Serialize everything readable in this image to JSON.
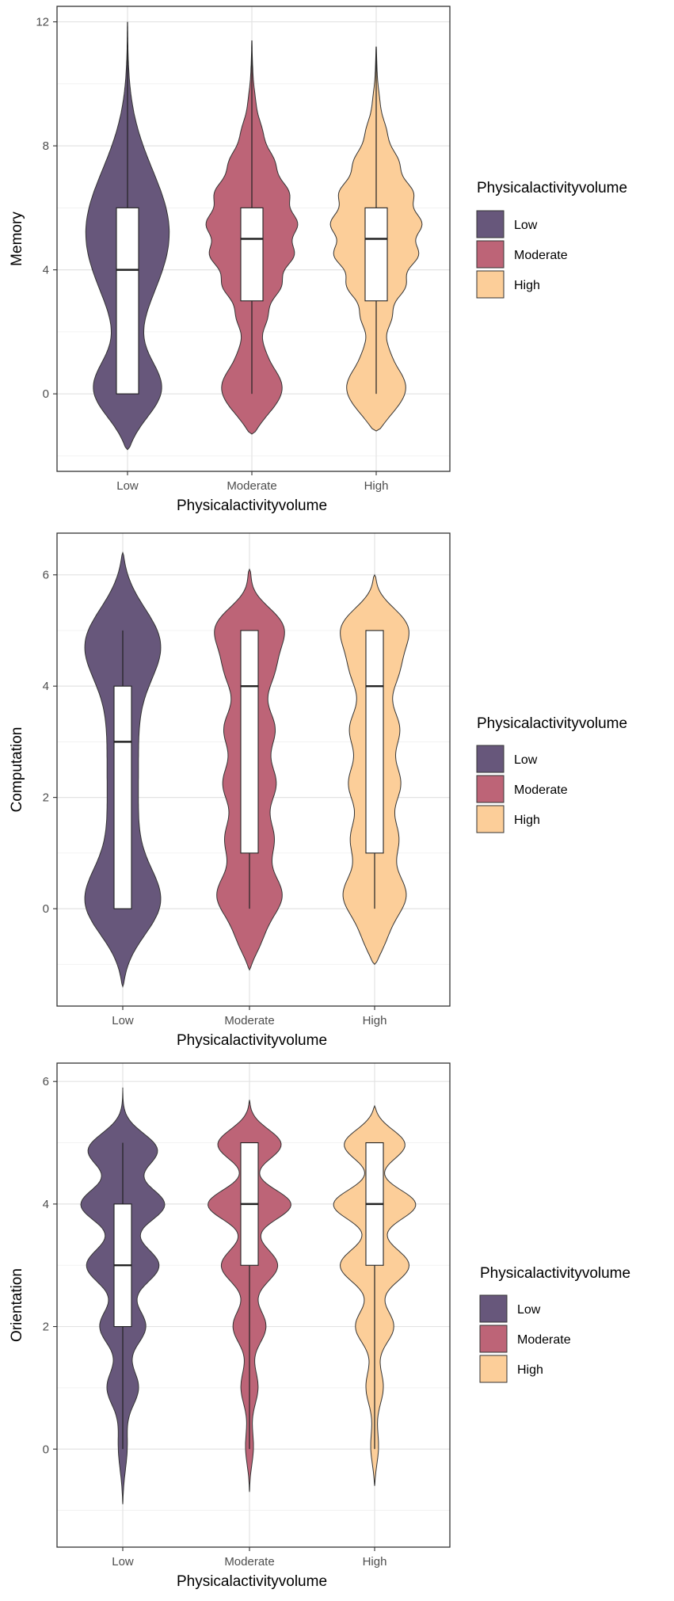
{
  "colors": {
    "Low": "#67577b",
    "Moderate": "#bd6477",
    "High": "#fcce99"
  },
  "chart_data": [
    {
      "type": "violin",
      "title": "",
      "xlabel": "Physicalactivityvolume",
      "ylabel": "Memory",
      "categories": [
        "Low",
        "Moderate",
        "High"
      ],
      "yticks": [
        0,
        4,
        8,
        12
      ],
      "ylim": [
        -2.5,
        12.5
      ],
      "grid": true,
      "legend": {
        "title": "Physicalactivityvolume",
        "position": "right",
        "entries": [
          "Low",
          "Moderate",
          "High"
        ]
      },
      "series": [
        {
          "name": "Low",
          "box": {
            "q1": 0,
            "median": 4,
            "q3": 6,
            "whisker_low": 0,
            "whisker_high": 12
          },
          "range": [
            -1.8,
            11.9
          ]
        },
        {
          "name": "Moderate",
          "box": {
            "q1": 3,
            "median": 5,
            "q3": 6,
            "whisker_low": 0,
            "whisker_high": 11.4
          },
          "range": [
            -1.3,
            11.4
          ]
        },
        {
          "name": "High",
          "box": {
            "q1": 3,
            "median": 5,
            "q3": 6,
            "whisker_low": 0,
            "whisker_high": 11.2
          },
          "range": [
            -1.2,
            11.2
          ]
        }
      ]
    },
    {
      "type": "violin",
      "title": "",
      "xlabel": "Physicalactivityvolume",
      "ylabel": "Computation",
      "categories": [
        "Low",
        "Moderate",
        "High"
      ],
      "yticks": [
        0,
        2,
        4,
        6
      ],
      "ylim": [
        -1.75,
        6.75
      ],
      "grid": true,
      "legend": {
        "title": "Physicalactivityvolume",
        "position": "right",
        "entries": [
          "Low",
          "Moderate",
          "High"
        ]
      },
      "series": [
        {
          "name": "Low",
          "box": {
            "q1": 0,
            "median": 3,
            "q3": 4,
            "whisker_low": 0,
            "whisker_high": 5
          },
          "range": [
            -1.4,
            6.4
          ]
        },
        {
          "name": "Moderate",
          "box": {
            "q1": 1,
            "median": 4,
            "q3": 5,
            "whisker_low": 0,
            "whisker_high": 5
          },
          "range": [
            -1.1,
            6.1
          ]
        },
        {
          "name": "High",
          "box": {
            "q1": 1,
            "median": 4,
            "q3": 5,
            "whisker_low": 0,
            "whisker_high": 5
          },
          "range": [
            -1.0,
            6.0
          ]
        }
      ]
    },
    {
      "type": "violin",
      "title": "",
      "xlabel": "Physicalactivityvolume",
      "ylabel": "Orientation",
      "categories": [
        "Low",
        "Moderate",
        "High"
      ],
      "yticks": [
        0,
        2,
        4,
        6
      ],
      "ylim": [
        -1.6,
        6.3
      ],
      "grid": true,
      "legend": {
        "title": "Physicalactivityvolume",
        "position": "right",
        "entries": [
          "Low",
          "Moderate",
          "High"
        ]
      },
      "series": [
        {
          "name": "Low",
          "box": {
            "q1": 2,
            "median": 3,
            "q3": 4,
            "whisker_low": 0,
            "whisker_high": 5
          },
          "range": [
            -0.9,
            5.9
          ]
        },
        {
          "name": "Moderate",
          "box": {
            "q1": 3,
            "median": 4,
            "q3": 5,
            "whisker_low": 0,
            "whisker_high": 5
          },
          "range": [
            -0.7,
            5.7
          ]
        },
        {
          "name": "High",
          "box": {
            "q1": 3,
            "median": 4,
            "q3": 5,
            "whisker_low": 0,
            "whisker_high": 5
          },
          "range": [
            -0.6,
            5.6
          ]
        }
      ]
    }
  ]
}
